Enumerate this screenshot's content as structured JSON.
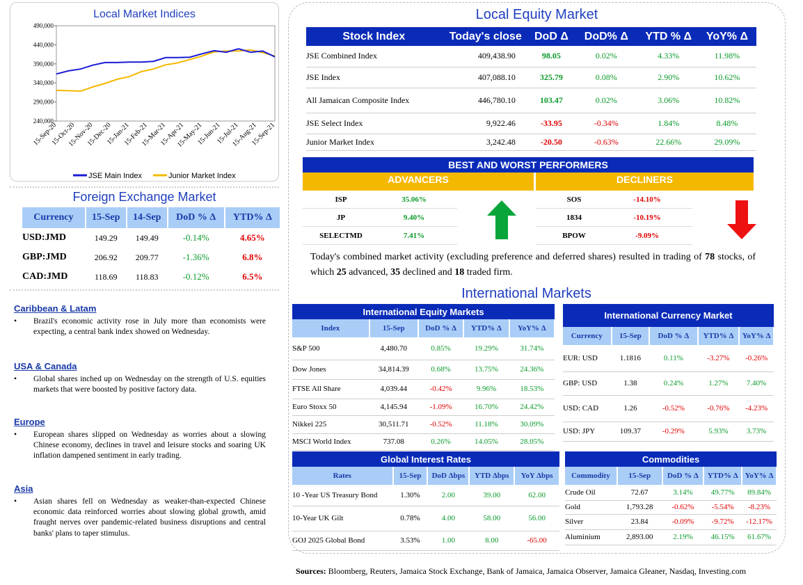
{
  "chart": {
    "title": "Local Market Indices",
    "legend": [
      "JSE Main Index",
      "Junior Market Index"
    ],
    "colors": {
      "main": "#1a1ad8",
      "junior": "#f5b800"
    }
  },
  "chart_data": {
    "type": "line",
    "title": "Local Market Indices",
    "ylim": [
      240000,
      490000
    ],
    "yticks": [
      "490,000",
      "440,000",
      "390,000",
      "340,000",
      "290,000",
      "240,000"
    ],
    "xticks": [
      "15-Sep-20",
      "15-Oct-20",
      "15-Nov-20",
      "15-Dec-20",
      "15-Jan-21",
      "15-Feb-21",
      "15-Mar-21",
      "15-Apr-21",
      "15-May-21",
      "15-Jun-21",
      "15-Jul-21",
      "15-Aug-21",
      "15-Sep-21"
    ],
    "series": [
      {
        "name": "JSE Main Index",
        "values": [
          365000,
          370000,
          378000,
          385000,
          395000,
          392000,
          396000,
          393000,
          398000,
          405000,
          408000,
          406000,
          418000,
          423000,
          422000,
          428000,
          422000,
          422000,
          410000
        ]
      },
      {
        "name": "Junior Market Index",
        "values": [
          322000,
          318000,
          320000,
          328000,
          340000,
          348000,
          358000,
          368000,
          378000,
          386000,
          394000,
          400000,
          412000,
          420000,
          425000,
          422000,
          428000,
          418000,
          412000
        ]
      }
    ]
  },
  "fx": {
    "title": "Foreign Exchange Market",
    "headers": [
      "Currency",
      "15-Sep",
      "14-Sep",
      "DoD % Δ",
      "YTD% Δ"
    ],
    "rows": [
      [
        "USD:JMD",
        "149.29",
        "149.49",
        "-0.14%",
        "4.65%"
      ],
      [
        "GBP:JMD",
        "206.92",
        "209.77",
        "-1.36%",
        "6.8%"
      ],
      [
        "CAD:JMD",
        "118.69",
        "118.83",
        "-0.12%",
        "6.5%"
      ]
    ]
  },
  "news": [
    {
      "h": "Caribbean & Latam",
      "t": "Brazil's economic activity rose in July more than economists were expecting, a central bank index showed on Wednesday."
    },
    {
      "h": "USA & Canada",
      "t": "Global shares inched up on Wednesday on the strength of U.S. equities markets that were boosted by positive factory data."
    },
    {
      "h": "Europe",
      "t": "European shares slipped on Wednesday as worries about a slowing Chinese economy, declines in travel and leisure stocks and soaring UK inflation dampened sentiment in early trading."
    },
    {
      "h": "Asia",
      "t": "Asian shares fell on Wednesday as weaker-than-expected Chinese economic data reinforced worries about slowing global growth, amid fraught nerves over pandemic-related business disruptions and central banks' plans to taper stimulus."
    }
  ],
  "equity": {
    "title": "Local Equity Market",
    "headers": [
      "Stock Index",
      "Today's close",
      "DoD  Δ",
      "DoD% Δ",
      "YTD % Δ",
      "YoY% Δ"
    ],
    "rows": [
      [
        "JSE Combined Index",
        "409,438.90",
        "98.05",
        "0.02%",
        "4.33%",
        "11.98%"
      ],
      [
        "JSE Index",
        "407,088.10",
        "325.79",
        "0.08%",
        "2.90%",
        "10.62%"
      ],
      [
        "All Jamaican Composite Index",
        "446,780.10",
        "103.47",
        "0.02%",
        "3.06%",
        "10.82%"
      ],
      [
        "JSE Select Index",
        "9,922.46",
        "-33.95",
        "-0.34%",
        "1.84%",
        "8.48%"
      ],
      [
        "Junior Market Index",
        "3,242.48",
        "-20.50",
        "-0.63%",
        "22.66%",
        "29.09%"
      ]
    ]
  },
  "perf": {
    "title": "BEST AND WORST PERFORMERS",
    "adv": "ADVANCERS",
    "dec": "DECLINERS",
    "advancers": [
      [
        "ISP",
        "35.06%"
      ],
      [
        "JP",
        "9.40%"
      ],
      [
        "SELECTMD",
        "7.41%"
      ]
    ],
    "decliners": [
      [
        "SOS",
        "-14.10%"
      ],
      [
        "1834",
        "-10.19%"
      ],
      [
        "BPOW",
        "-9.09%"
      ]
    ]
  },
  "summary": {
    "a": "Today's combined market activity (excluding preference and deferred shares) resulted in trading of ",
    "n1": "78",
    "b": " stocks, of which ",
    "n2": "25",
    "c": " advanced, ",
    "n3": "35",
    "d": " declined and ",
    "n4": "18",
    "e": " traded firm."
  },
  "intl": {
    "title": "International Markets"
  },
  "ieq": {
    "title": "International Equity Markets",
    "headers": [
      "Index",
      "15-Sep",
      "DoD % Δ",
      "YTD% Δ",
      "YoY% Δ"
    ],
    "rows": [
      [
        "S&P 500",
        "4,480.70",
        "0.85%",
        "19.29%",
        "31.74%"
      ],
      [
        "Dow Jones",
        "34,814.39",
        "0.68%",
        "13.75%",
        "24.36%"
      ],
      [
        "FTSE All Share",
        "4,039.44",
        "-0.42%",
        "9.96%",
        "18.53%"
      ],
      [
        "Euro Stoxx 50",
        "4,145.94",
        "-1.09%",
        "16.70%",
        "24.42%"
      ],
      [
        "Nikkei 225",
        "30,511.71",
        "-0.52%",
        "11.18%",
        "30.09%"
      ],
      [
        "MSCI World Index",
        "737.08",
        "0.26%",
        "14.05%",
        "28.05%"
      ]
    ]
  },
  "icur": {
    "title": "International Currency Market",
    "headers": [
      "Currency",
      "15-Sep",
      "DoD % Δ",
      "YTD% Δ",
      "YoY% Δ"
    ],
    "rows": [
      [
        "EUR: USD",
        "1.1816",
        "0.11%",
        "-3.27%",
        "-0.26%"
      ],
      [
        "GBP: USD",
        "1.38",
        "0.24%",
        "1.27%",
        "7.40%"
      ],
      [
        "USD: CAD",
        "1.26",
        "-0.52%",
        "-0.76%",
        "-4.23%"
      ],
      [
        "USD: JPY",
        "109.37",
        "-0.29%",
        "5.93%",
        "3.73%"
      ]
    ]
  },
  "rates": {
    "title": "Global Interest Rates",
    "headers": [
      "Rates",
      "15-Sep",
      "DoD Δbps",
      "YTD Δbps",
      "YoY Δbps"
    ],
    "rows": [
      [
        "10 -Year US Treasury Bond",
        "1.30%",
        "2.00",
        "39.00",
        "62.00"
      ],
      [
        "10-Year UK Gilt",
        "0.78%",
        "4.00",
        "58.00",
        "56.00"
      ],
      [
        "GOJ 2025 Global Bond",
        "3.53%",
        "1.00",
        "8.00",
        "-65.00"
      ]
    ]
  },
  "comm": {
    "title": "Commodities",
    "headers": [
      "Commodity",
      "15-Sep",
      "DoD % Δ",
      "YTD% Δ",
      "YoY% Δ"
    ],
    "rows": [
      [
        "Crude Oil",
        "72.67",
        "3.14%",
        "49.77%",
        "89.84%"
      ],
      [
        "Gold",
        "1,793.28",
        "-0.62%",
        "-5.54%",
        "-8.23%"
      ],
      [
        "Silver",
        "23.84",
        "-0.09%",
        "-9.72%",
        "-12.17%"
      ],
      [
        "Aluminium",
        "2,893.00",
        "2.19%",
        "46.15%",
        "61.67%"
      ]
    ]
  },
  "sources": {
    "label": "Sources:",
    "text": " Bloomberg, Reuters, Jamaica Stock Exchange, Bank of Jamaica, Jamaica Observer, Jamaica Gleaner, Nasdaq, Investing.com"
  }
}
